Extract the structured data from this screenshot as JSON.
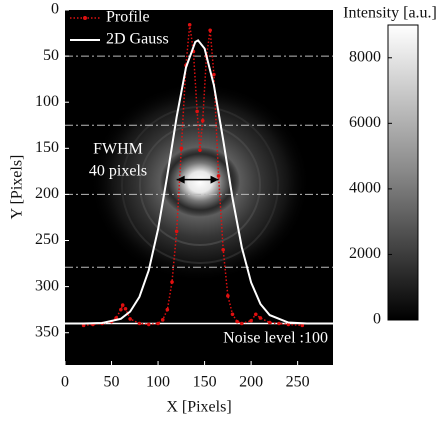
{
  "chart_data": {
    "type": "image",
    "xlabel": "X [Pixels]",
    "ylabel": "Y [Pixels]",
    "xlim": [
      0,
      288
    ],
    "ylim": [
      0,
      385
    ],
    "xticks": [
      0,
      50,
      100,
      150,
      200,
      250
    ],
    "yticks": [
      0,
      50,
      100,
      150,
      200,
      250,
      300,
      350
    ],
    "colorbar_label": "Intensity [a.u.]",
    "clim": [
      0,
      9000
    ],
    "cticks": [
      0,
      2000,
      4000,
      6000,
      8000
    ],
    "legend": "upper left",
    "series": [
      {
        "name": "Profile",
        "color": "#e01010",
        "x": [
          20,
          30,
          40,
          50,
          55,
          60,
          62,
          65,
          70,
          80,
          90,
          100,
          105,
          110,
          115,
          120,
          125,
          130,
          134,
          138,
          142,
          145,
          148,
          152,
          156,
          160,
          165,
          170,
          175,
          180,
          185,
          190,
          200,
          205,
          210,
          220,
          230,
          240,
          255
        ],
        "values": [
          342,
          341,
          340,
          338,
          334,
          325,
          320,
          324,
          335,
          340,
          341,
          340,
          336,
          325,
          295,
          240,
          150,
          60,
          16,
          45,
          110,
          152,
          120,
          50,
          22,
          70,
          180,
          260,
          310,
          330,
          338,
          340,
          337,
          330,
          334,
          339,
          340,
          341,
          342
        ]
      },
      {
        "name": "2D Gauss",
        "color": "#ffffff",
        "x": [
          0,
          20,
          40,
          60,
          70,
          80,
          90,
          100,
          110,
          120,
          130,
          140,
          143,
          150,
          160,
          170,
          180,
          190,
          200,
          210,
          220,
          240,
          260,
          288
        ],
        "values": [
          340,
          340,
          339.4,
          334.9,
          327.1,
          311.1,
          282.3,
          237.8,
          179.1,
          115.9,
          62.4,
          34.6,
          33,
          41.8,
          81.5,
          141,
          204,
          257.4,
          295.5,
          318.8,
          330.9,
          338.9,
          340,
          340
        ]
      }
    ],
    "guide_lines": [
      50,
      125,
      200,
      279
    ],
    "noise_line": 340,
    "fwhm_arrow": {
      "x": [
        120,
        165
      ],
      "y": 184
    },
    "annotations": [
      "FWHM",
      "40 pixels",
      "Noise level :100"
    ]
  }
}
